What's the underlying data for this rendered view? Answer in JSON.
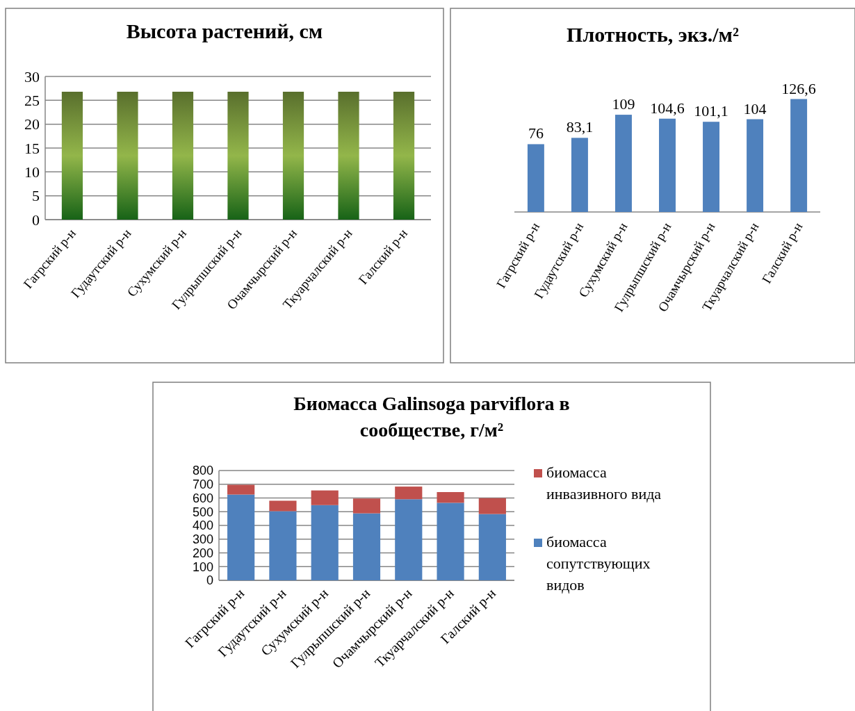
{
  "chart_data": [
    {
      "type": "bar",
      "title": "Высота растений, см",
      "categories": [
        "Гагрский р-н",
        "Гудаутский р-н",
        "Сухумский р-н",
        "Гулрыпшский р-н",
        "Очамчырский р-н",
        "Ткуарчалский р-н",
        "Галский р-н"
      ],
      "values": [
        26.8,
        26.8,
        26.8,
        26.8,
        26.8,
        26.8,
        26.8
      ],
      "color": "#77933c",
      "ylim": [
        0,
        30
      ],
      "yticks": [
        0,
        5,
        10,
        15,
        20,
        25,
        30
      ],
      "grid": "y"
    },
    {
      "type": "bar",
      "title": "Плотность, экз./м²",
      "categories": [
        "Гагрский р-н",
        "Гудаутский р-н",
        "Сухумский р-н",
        "Гулрыпшский р-н",
        "Очамчырский р-н",
        "Ткуарчалский р-н",
        "Галский р-н"
      ],
      "values": [
        76,
        83.1,
        109,
        104.6,
        101.1,
        104,
        126.6
      ],
      "value_labels": [
        "76",
        "83,1",
        "109",
        "104,6",
        "101,1",
        "104",
        "126,6"
      ],
      "color": "#4f81bd",
      "tick_labels": "x"
    },
    {
      "type": "bar",
      "title": "Биомасса Galinsoga parviflora в сообществе, г/м²",
      "categories": [
        "Гагрский р-н",
        "Гудаутский р-н",
        "Сухумский р-н",
        "Гулрыпшский р-н",
        "Очамчырский р-н",
        "Ткуарчалский р-н",
        "Галский р-н"
      ],
      "stacked": true,
      "series": [
        {
          "name": "биомасса сопутствующих видов",
          "color": "#4f81bd",
          "values": [
            625,
            504,
            548,
            488,
            591,
            565,
            483
          ]
        },
        {
          "name": "биомасса инвазивного вида",
          "color": "#c0504d",
          "values": [
            71,
            76,
            107,
            108,
            92,
            78,
            116
          ]
        }
      ],
      "ylim": [
        0,
        800
      ],
      "yticks": [
        0,
        100,
        200,
        300,
        400,
        500,
        600,
        700,
        800
      ],
      "grid": "y",
      "legend": "right"
    }
  ]
}
